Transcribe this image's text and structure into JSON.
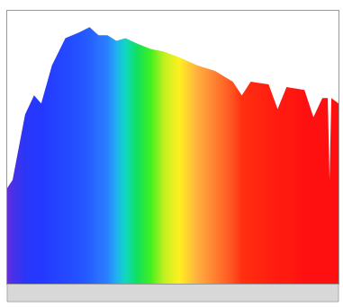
{
  "chart_data": {
    "type": "area",
    "x": [
      380,
      386,
      400,
      410,
      418,
      430,
      445,
      460,
      472,
      482,
      492,
      502,
      512,
      525,
      540,
      555,
      572,
      592,
      612,
      632,
      642,
      652,
      672,
      682,
      692,
      712,
      722,
      732,
      738,
      740,
      742,
      750
    ],
    "values": [
      35,
      38,
      62,
      69,
      66,
      80,
      90,
      92,
      94,
      91,
      91,
      89,
      90,
      88,
      86,
      85,
      83,
      80,
      78,
      74,
      69,
      74,
      73,
      64,
      72,
      71,
      61,
      68,
      68,
      38,
      68,
      66
    ],
    "colors": [
      "#6a2fd6",
      "#4a30e8",
      "#2a36f5",
      "#2438ff",
      "#2438ff",
      "#2440ff",
      "#2448ff",
      "#2452ff",
      "#2460ff",
      "#2a70ff",
      "#2a80ff",
      "#20b0f0",
      "#10d8c0",
      "#10e060",
      "#40f020",
      "#c0f020",
      "#fff020",
      "#ffb040",
      "#ff8030",
      "#ff5020",
      "#ff3010",
      "#ff2a10",
      "#ff2010",
      "#ff1a10",
      "#ff1a10",
      "#ff1010",
      "#ff1010",
      "#ff1010",
      "#ff1010",
      "#ff1010",
      "#ff1010",
      "#ff1010"
    ],
    "xlim": [
      380,
      750
    ],
    "ylim": [
      0,
      100
    ],
    "grid": false,
    "tick_labels": false
  }
}
